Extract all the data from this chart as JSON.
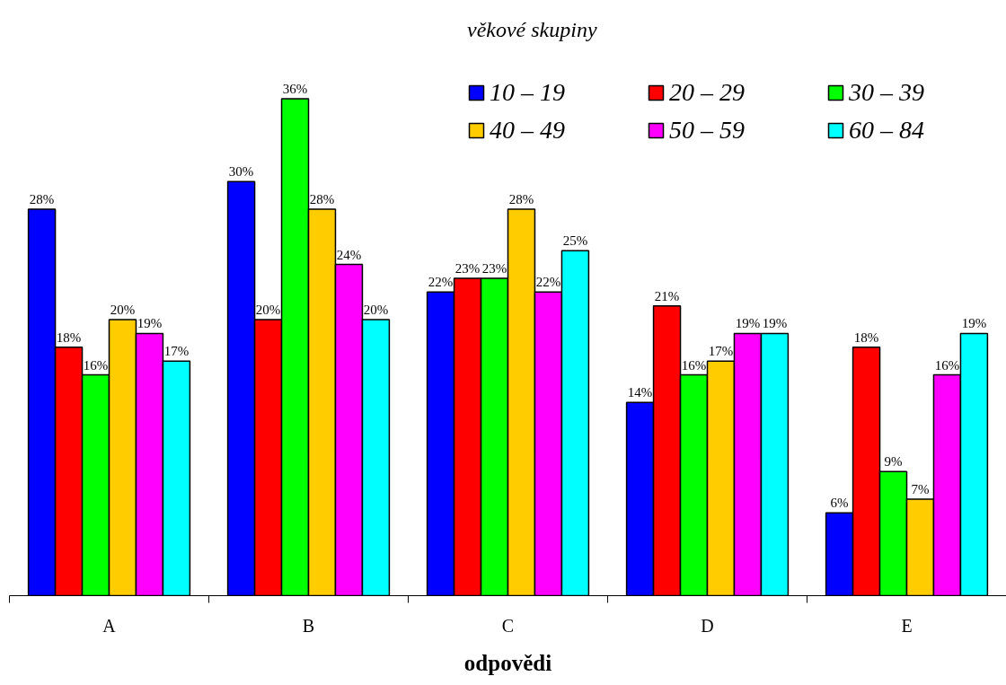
{
  "chart_data": {
    "type": "bar",
    "xlabel": "odpovědi",
    "legend_title": "věkové skupiny",
    "legend": "top right",
    "categories": [
      "A",
      "B",
      "C",
      "D",
      "E"
    ],
    "series": [
      {
        "name": "10 – 19",
        "color": "#0000ff",
        "values": [
          28,
          30,
          22,
          14,
          6
        ],
        "value_labels": [
          "28%",
          "30%",
          "22%",
          "14%",
          "6%"
        ]
      },
      {
        "name": "20 – 29",
        "color": "#ff0000",
        "values": [
          18,
          20,
          23,
          21,
          18
        ],
        "value_labels": [
          "18%",
          "20%",
          "23%",
          "21%",
          "18%"
        ]
      },
      {
        "name": "30 – 39",
        "color": "#00ff00",
        "values": [
          16,
          36,
          23,
          16,
          9
        ],
        "value_labels": [
          "16%",
          "36%",
          "23%",
          "16%",
          "9%"
        ]
      },
      {
        "name": "40 – 49",
        "color": "#ffcc00",
        "values": [
          20,
          28,
          28,
          17,
          7
        ],
        "value_labels": [
          "20%",
          "28%",
          "28%",
          "17%",
          "7%"
        ]
      },
      {
        "name": "50 – 59",
        "color": "#ff00ff",
        "values": [
          19,
          24,
          22,
          19,
          16
        ],
        "value_labels": [
          "19%",
          "24%",
          "22%",
          "19%",
          "16%"
        ]
      },
      {
        "name": "60 – 84",
        "color": "#00ffff",
        "values": [
          17,
          20,
          25,
          19,
          19
        ],
        "value_labels": [
          "17%",
          "20%",
          "25%",
          "19%",
          "19%"
        ]
      }
    ]
  }
}
